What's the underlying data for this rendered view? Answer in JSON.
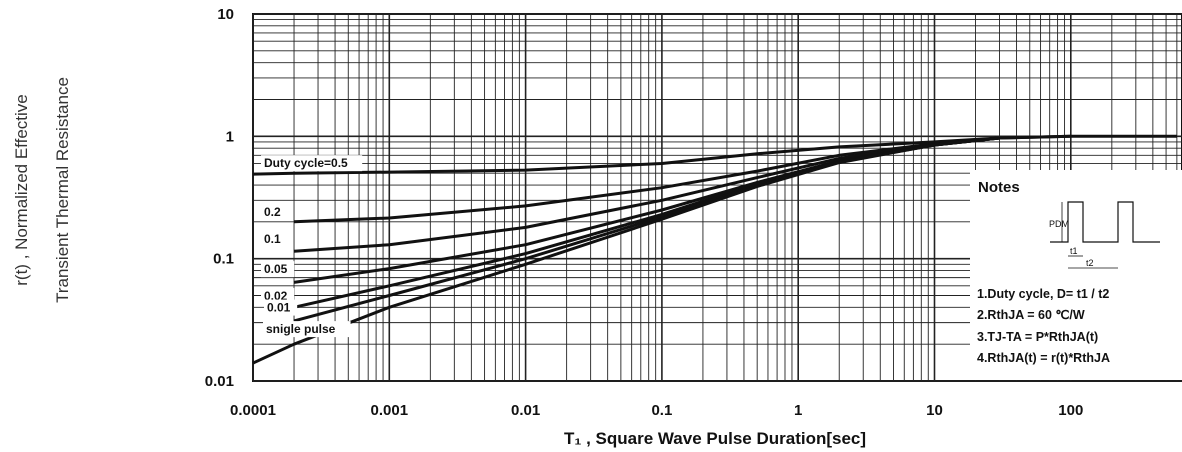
{
  "chart_data": {
    "type": "line",
    "xlabel": "T₁ , Square Wave Pulse Duration[sec]",
    "ylabel_line1": "r(t) , Normalized Effective",
    "ylabel_line2": "Transient Thermal Resistance",
    "x_scale": "log",
    "y_scale": "log",
    "xlim": [
      0.0001,
      600
    ],
    "ylim": [
      0.01,
      10
    ],
    "grid": true,
    "x_ticks": [
      {
        "value": 0.0001,
        "label": "0.0001"
      },
      {
        "value": 0.001,
        "label": "0.001"
      },
      {
        "value": 0.01,
        "label": "0.01"
      },
      {
        "value": 0.1,
        "label": "0.1"
      },
      {
        "value": 1,
        "label": "1"
      },
      {
        "value": 10,
        "label": "10"
      },
      {
        "value": 100,
        "label": "100"
      }
    ],
    "y_ticks": [
      {
        "value": 10,
        "label": "10"
      },
      {
        "value": 1,
        "label": "1"
      },
      {
        "value": 0.1,
        "label": "0.1"
      },
      {
        "value": 0.01,
        "label": "0.01"
      }
    ],
    "series": [
      {
        "name": "Duty cycle=0.5",
        "x": [
          0.0001,
          0.0002,
          0.001,
          0.01,
          0.1,
          0.5,
          2,
          10,
          30,
          100,
          600
        ],
        "y": [
          0.49,
          0.5,
          0.51,
          0.53,
          0.6,
          0.72,
          0.82,
          0.9,
          0.97,
          1.0,
          1.0
        ]
      },
      {
        "name": "0.2",
        "x": [
          0.0002,
          0.001,
          0.01,
          0.1,
          0.5,
          2,
          10,
          30,
          100
        ],
        "y": [
          0.2,
          0.215,
          0.27,
          0.38,
          0.52,
          0.7,
          0.87,
          0.97,
          1.0
        ]
      },
      {
        "name": "0.1",
        "x": [
          0.0002,
          0.001,
          0.01,
          0.1,
          0.5,
          2,
          10,
          30
        ],
        "y": [
          0.115,
          0.13,
          0.18,
          0.3,
          0.46,
          0.66,
          0.86,
          0.97
        ]
      },
      {
        "name": "0.05",
        "x": [
          0.0002,
          0.001,
          0.01,
          0.1,
          0.5,
          2,
          10,
          30
        ],
        "y": [
          0.064,
          0.083,
          0.13,
          0.25,
          0.42,
          0.63,
          0.85,
          0.97
        ]
      },
      {
        "name": "0.02",
        "x": [
          0.0002,
          0.001,
          0.01,
          0.1,
          0.5,
          2,
          10,
          30
        ],
        "y": [
          0.04,
          0.06,
          0.11,
          0.23,
          0.41,
          0.62,
          0.85,
          0.97
        ]
      },
      {
        "name": "0.01",
        "x": [
          0.0002,
          0.001,
          0.01,
          0.1,
          0.5,
          2,
          10,
          30
        ],
        "y": [
          0.031,
          0.05,
          0.1,
          0.22,
          0.4,
          0.62,
          0.85,
          0.97
        ]
      },
      {
        "name": "snigle pulse",
        "x": [
          0.0001,
          0.0002,
          0.001,
          0.01,
          0.1,
          0.5,
          2,
          10,
          30
        ],
        "y": [
          0.014,
          0.02,
          0.04,
          0.09,
          0.21,
          0.39,
          0.61,
          0.85,
          0.97
        ]
      }
    ],
    "legend_labels": [
      {
        "text": "Duty cycle=0.5",
        "series": "Duty cycle=0.5"
      },
      {
        "text": "0.2",
        "series": "0.2"
      },
      {
        "text": "0.1",
        "series": "0.1"
      },
      {
        "text": "0.05",
        "series": "0.05"
      },
      {
        "text": "0.02",
        "series": "0.02"
      },
      {
        "text": "0.01",
        "series": "0.01"
      },
      {
        "text": "snigle pulse",
        "series": "snigle pulse"
      }
    ],
    "notes": {
      "title": "Notes",
      "lines": [
        "1.Duty cycle, D= t1 / t2",
        "2.RthJA =  60 ℃/W",
        "3.TJ-TA = P*RthJA(t)",
        "4.RthJA(t) = r(t)*RthJA"
      ],
      "diagram_labels": {
        "pdm": "PDM",
        "t1": "t1",
        "t2": "t2"
      }
    }
  }
}
